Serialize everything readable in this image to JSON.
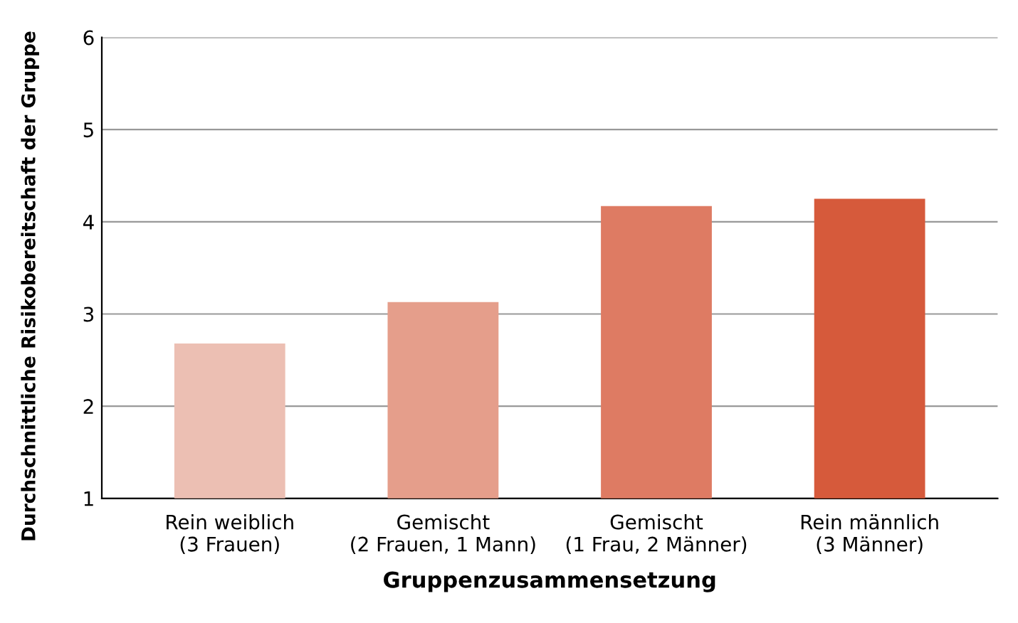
{
  "chart_data": {
    "type": "bar",
    "xlabel": "Gruppenzusammensetzung",
    "ylabel": "Durchschnittliche Risikobereitschaft der Gruppe",
    "categories": [
      "Rein weiblich\n(3 Frauen)",
      "Gemischt\n(2 Frauen, 1 Mann)",
      "Gemischt\n(1 Frau, 2 Männer)",
      "Rein männlich\n(3 Männer)"
    ],
    "values": [
      2.68,
      3.13,
      4.17,
      4.25
    ],
    "colors": [
      "#ecbfb3",
      "#e59e8b",
      "#de7b63",
      "#d65a3b"
    ],
    "ylim": [
      1,
      6
    ],
    "yticks": [
      1,
      2,
      3,
      4,
      5,
      6
    ],
    "grid": "y",
    "legend": false
  }
}
